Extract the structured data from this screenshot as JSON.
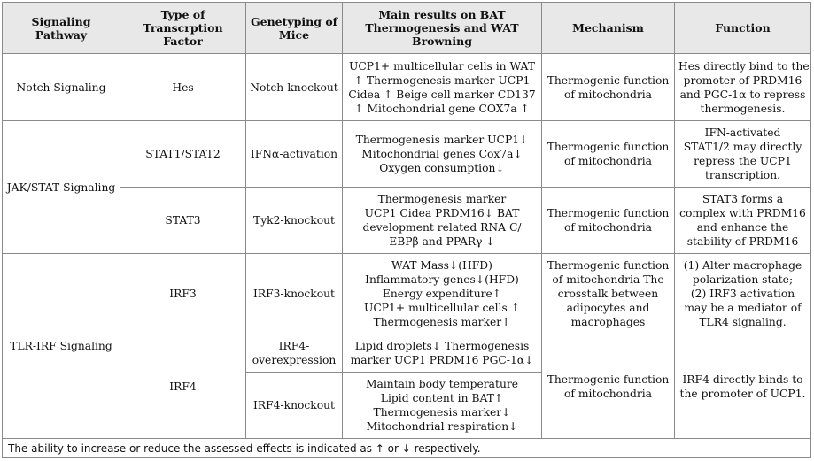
{
  "headers": {
    "pathway": "Signaling Pathway",
    "tf": "Type of Transcrption Factor",
    "genotype": "Genetyping of Mice",
    "results": "Main results on BAT Thermogenesis and WAT Browning",
    "mechanism": "Mechanism",
    "function": "Function"
  },
  "pathways": {
    "notch": "Notch Signaling",
    "jakstat": "JAK/STAT Signaling",
    "tlrirf": "TLR-IRF Signaling"
  },
  "rows": {
    "hes": {
      "tf": "Hes",
      "genotype": "Notch-knockout",
      "results": [
        "UCP1+ multicellular cells in WAT",
        "↑ Thermogenesis marker UCP1",
        "Cidea ↑ Beige cell marker CD137",
        "↑ Mitochondrial gene COX7a ↑"
      ],
      "mechanism": [
        "Thermogenic function",
        "of mitochondria"
      ],
      "function": [
        "Hes directly bind to the",
        "promoter of PRDM16",
        "and PGC-1α to repress",
        "thermogenesis."
      ]
    },
    "stat12": {
      "tf": "STAT1/STAT2",
      "genotype": "IFNα-activation",
      "results": [
        "Thermogenesis marker UCP1↓",
        "Mitochondrial genes Cox7a↓",
        "Oxygen consumption↓"
      ],
      "mechanism": [
        "Thermogenic function",
        "of mitochondria"
      ],
      "function": [
        "IFN-activated",
        "STAT1/2 may directly",
        "repress the UCP1",
        "transcription."
      ]
    },
    "stat3": {
      "tf": "STAT3",
      "genotype": "Tyk2-knockout",
      "results": [
        "Thermogenesis marker",
        "UCP1 Cidea PRDM16↓ BAT",
        "development related RNA C/",
        "EBPβ and PPARγ ↓"
      ],
      "mechanism": [
        "Thermogenic function",
        "of mitochondria"
      ],
      "function": [
        "STAT3 forms a",
        "complex with PRDM16",
        "and enhance the",
        "stability of PRDM16"
      ]
    },
    "irf3": {
      "tf": "IRF3",
      "genotype": "IRF3-knockout",
      "results": [
        "WAT Mass↓(HFD)",
        "Inflammatory genes↓(HFD)",
        "Energy expenditure↑",
        "UCP1+ multicellular cells ↑",
        "Thermogenesis marker↑"
      ],
      "mechanism": [
        "Thermogenic function",
        "of mitochondria The",
        "crosstalk between",
        "adipocytes and",
        "macrophages"
      ],
      "function": [
        "(1) Alter macrophage",
        "polarization state;",
        "(2) IRF3 activation",
        "may be a mediator of",
        "TLR4 signaling."
      ]
    },
    "irf4": {
      "tf": "IRF4",
      "genotype_over": [
        "IRF4-",
        "overexpression"
      ],
      "results_over": [
        "Lipid droplets↓ Thermogenesis",
        "marker UCP1 PRDM16 PGC-1α↓"
      ],
      "genotype_ko": "IRF4-knockout",
      "results_ko": [
        "Maintain body temperature",
        "Lipid content in BAT↑",
        "Thermogenesis marker↓",
        "Mitochondrial respiration↓"
      ],
      "mechanism": [
        "Thermogenic function",
        "of mitochondria"
      ],
      "function": [
        "IRF4 directly binds to",
        "the promoter of UCP1."
      ]
    }
  },
  "footnote": "The ability to increase or reduce the assessed effects is indicated as ↑ or ↓ respectively."
}
